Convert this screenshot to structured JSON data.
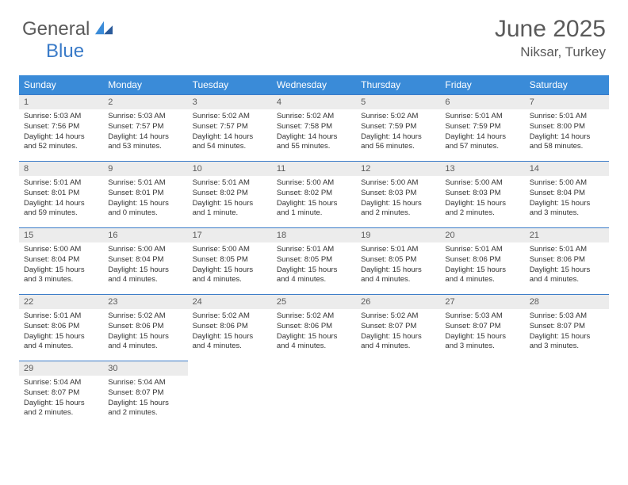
{
  "brand": {
    "word1": "General",
    "word2": "Blue",
    "colors": {
      "word1": "#5a5a5a",
      "word2": "#3a7bc8",
      "icon": "#2a5a9a"
    }
  },
  "header": {
    "title": "June 2025",
    "location": "Niksar, Turkey",
    "title_fontsize": 30,
    "location_fontsize": 17,
    "text_color": "#5a5a5a"
  },
  "calendar": {
    "type": "table",
    "header_bg": "#3a8bd8",
    "header_fg": "#ffffff",
    "border_color": "#3a7bc8",
    "daynum_bg": "#ececec",
    "daynum_fg": "#5a5a5a",
    "cell_text_color": "#333333",
    "cell_fontsize": 9.5,
    "daynum_fontsize": 11,
    "columns": [
      "Sunday",
      "Monday",
      "Tuesday",
      "Wednesday",
      "Thursday",
      "Friday",
      "Saturday"
    ],
    "weeks": [
      [
        {
          "n": "1",
          "sr": "5:03 AM",
          "ss": "7:56 PM",
          "dl": "14 hours and 52 minutes."
        },
        {
          "n": "2",
          "sr": "5:03 AM",
          "ss": "7:57 PM",
          "dl": "14 hours and 53 minutes."
        },
        {
          "n": "3",
          "sr": "5:02 AM",
          "ss": "7:57 PM",
          "dl": "14 hours and 54 minutes."
        },
        {
          "n": "4",
          "sr": "5:02 AM",
          "ss": "7:58 PM",
          "dl": "14 hours and 55 minutes."
        },
        {
          "n": "5",
          "sr": "5:02 AM",
          "ss": "7:59 PM",
          "dl": "14 hours and 56 minutes."
        },
        {
          "n": "6",
          "sr": "5:01 AM",
          "ss": "7:59 PM",
          "dl": "14 hours and 57 minutes."
        },
        {
          "n": "7",
          "sr": "5:01 AM",
          "ss": "8:00 PM",
          "dl": "14 hours and 58 minutes."
        }
      ],
      [
        {
          "n": "8",
          "sr": "5:01 AM",
          "ss": "8:01 PM",
          "dl": "14 hours and 59 minutes."
        },
        {
          "n": "9",
          "sr": "5:01 AM",
          "ss": "8:01 PM",
          "dl": "15 hours and 0 minutes."
        },
        {
          "n": "10",
          "sr": "5:01 AM",
          "ss": "8:02 PM",
          "dl": "15 hours and 1 minute."
        },
        {
          "n": "11",
          "sr": "5:00 AM",
          "ss": "8:02 PM",
          "dl": "15 hours and 1 minute."
        },
        {
          "n": "12",
          "sr": "5:00 AM",
          "ss": "8:03 PM",
          "dl": "15 hours and 2 minutes."
        },
        {
          "n": "13",
          "sr": "5:00 AM",
          "ss": "8:03 PM",
          "dl": "15 hours and 2 minutes."
        },
        {
          "n": "14",
          "sr": "5:00 AM",
          "ss": "8:04 PM",
          "dl": "15 hours and 3 minutes."
        }
      ],
      [
        {
          "n": "15",
          "sr": "5:00 AM",
          "ss": "8:04 PM",
          "dl": "15 hours and 3 minutes."
        },
        {
          "n": "16",
          "sr": "5:00 AM",
          "ss": "8:04 PM",
          "dl": "15 hours and 4 minutes."
        },
        {
          "n": "17",
          "sr": "5:00 AM",
          "ss": "8:05 PM",
          "dl": "15 hours and 4 minutes."
        },
        {
          "n": "18",
          "sr": "5:01 AM",
          "ss": "8:05 PM",
          "dl": "15 hours and 4 minutes."
        },
        {
          "n": "19",
          "sr": "5:01 AM",
          "ss": "8:05 PM",
          "dl": "15 hours and 4 minutes."
        },
        {
          "n": "20",
          "sr": "5:01 AM",
          "ss": "8:06 PM",
          "dl": "15 hours and 4 minutes."
        },
        {
          "n": "21",
          "sr": "5:01 AM",
          "ss": "8:06 PM",
          "dl": "15 hours and 4 minutes."
        }
      ],
      [
        {
          "n": "22",
          "sr": "5:01 AM",
          "ss": "8:06 PM",
          "dl": "15 hours and 4 minutes."
        },
        {
          "n": "23",
          "sr": "5:02 AM",
          "ss": "8:06 PM",
          "dl": "15 hours and 4 minutes."
        },
        {
          "n": "24",
          "sr": "5:02 AM",
          "ss": "8:06 PM",
          "dl": "15 hours and 4 minutes."
        },
        {
          "n": "25",
          "sr": "5:02 AM",
          "ss": "8:06 PM",
          "dl": "15 hours and 4 minutes."
        },
        {
          "n": "26",
          "sr": "5:02 AM",
          "ss": "8:07 PM",
          "dl": "15 hours and 4 minutes."
        },
        {
          "n": "27",
          "sr": "5:03 AM",
          "ss": "8:07 PM",
          "dl": "15 hours and 3 minutes."
        },
        {
          "n": "28",
          "sr": "5:03 AM",
          "ss": "8:07 PM",
          "dl": "15 hours and 3 minutes."
        }
      ],
      [
        {
          "n": "29",
          "sr": "5:04 AM",
          "ss": "8:07 PM",
          "dl": "15 hours and 2 minutes."
        },
        {
          "n": "30",
          "sr": "5:04 AM",
          "ss": "8:07 PM",
          "dl": "15 hours and 2 minutes."
        },
        null,
        null,
        null,
        null,
        null
      ]
    ],
    "labels": {
      "sunrise": "Sunrise:",
      "sunset": "Sunset:",
      "daylight": "Daylight:"
    }
  }
}
